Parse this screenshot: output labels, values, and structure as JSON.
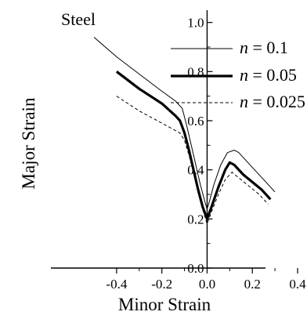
{
  "chart_data": {
    "type": "line",
    "title": "",
    "annotation": "Steel",
    "xlabel": "Minor Strain",
    "ylabel": "Major Strain",
    "xlim": [
      -0.5,
      0.4
    ],
    "ylim": [
      0.0,
      1.05
    ],
    "xticks": [
      -0.4,
      -0.2,
      0.0,
      0.2,
      0.4
    ],
    "xtick_labels": [
      "-0.4",
      "-0.2",
      "0.0",
      "0.2",
      "0.4"
    ],
    "yticks": [
      0.0,
      0.2,
      0.4,
      0.6,
      0.8,
      1.0
    ],
    "ytick_labels": [
      "0.0",
      "0.2",
      "0.4",
      "0.6",
      "0.8",
      "1.0"
    ],
    "grid": false,
    "legend_position": "top-right",
    "series": [
      {
        "name": "n = 0.1",
        "name_italic": "n",
        "name_rest": " = 0.1",
        "style": "thin-solid",
        "x": [
          -0.5,
          -0.4,
          -0.3,
          -0.2,
          -0.14,
          -0.11,
          -0.09,
          -0.07,
          -0.05,
          -0.03,
          -0.01,
          0.0,
          0.01,
          0.03,
          0.06,
          0.09,
          0.12,
          0.14,
          0.18,
          0.22,
          0.26,
          0.3
        ],
        "y": [
          0.94,
          0.86,
          0.79,
          0.72,
          0.68,
          0.65,
          0.58,
          0.5,
          0.42,
          0.34,
          0.27,
          0.24,
          0.27,
          0.34,
          0.42,
          0.47,
          0.48,
          0.47,
          0.43,
          0.39,
          0.35,
          0.31
        ]
      },
      {
        "name": "n = 0.05",
        "name_italic": "n",
        "name_rest": " = 0.05",
        "style": "thick-solid",
        "x": [
          -0.4,
          -0.3,
          -0.2,
          -0.14,
          -0.12,
          -0.1,
          -0.08,
          -0.06,
          -0.04,
          -0.02,
          0.0,
          0.02,
          0.05,
          0.08,
          0.1,
          0.12,
          0.16,
          0.2,
          0.24,
          0.28
        ],
        "y": [
          0.8,
          0.73,
          0.67,
          0.62,
          0.6,
          0.55,
          0.48,
          0.4,
          0.32,
          0.25,
          0.2,
          0.25,
          0.33,
          0.4,
          0.43,
          0.42,
          0.38,
          0.35,
          0.32,
          0.28
        ]
      },
      {
        "name": "n = 0.025",
        "name_italic": "n",
        "name_rest": " = 0.025",
        "style": "dashed",
        "x": [
          -0.4,
          -0.3,
          -0.2,
          -0.12,
          -0.1,
          -0.08,
          -0.06,
          -0.04,
          -0.02,
          0.0,
          0.02,
          0.05,
          0.08,
          0.11,
          0.15,
          0.19,
          0.23,
          0.27
        ],
        "y": [
          0.7,
          0.64,
          0.59,
          0.55,
          0.52,
          0.46,
          0.39,
          0.31,
          0.24,
          0.18,
          0.23,
          0.3,
          0.36,
          0.39,
          0.36,
          0.33,
          0.3,
          0.26
        ]
      }
    ]
  }
}
